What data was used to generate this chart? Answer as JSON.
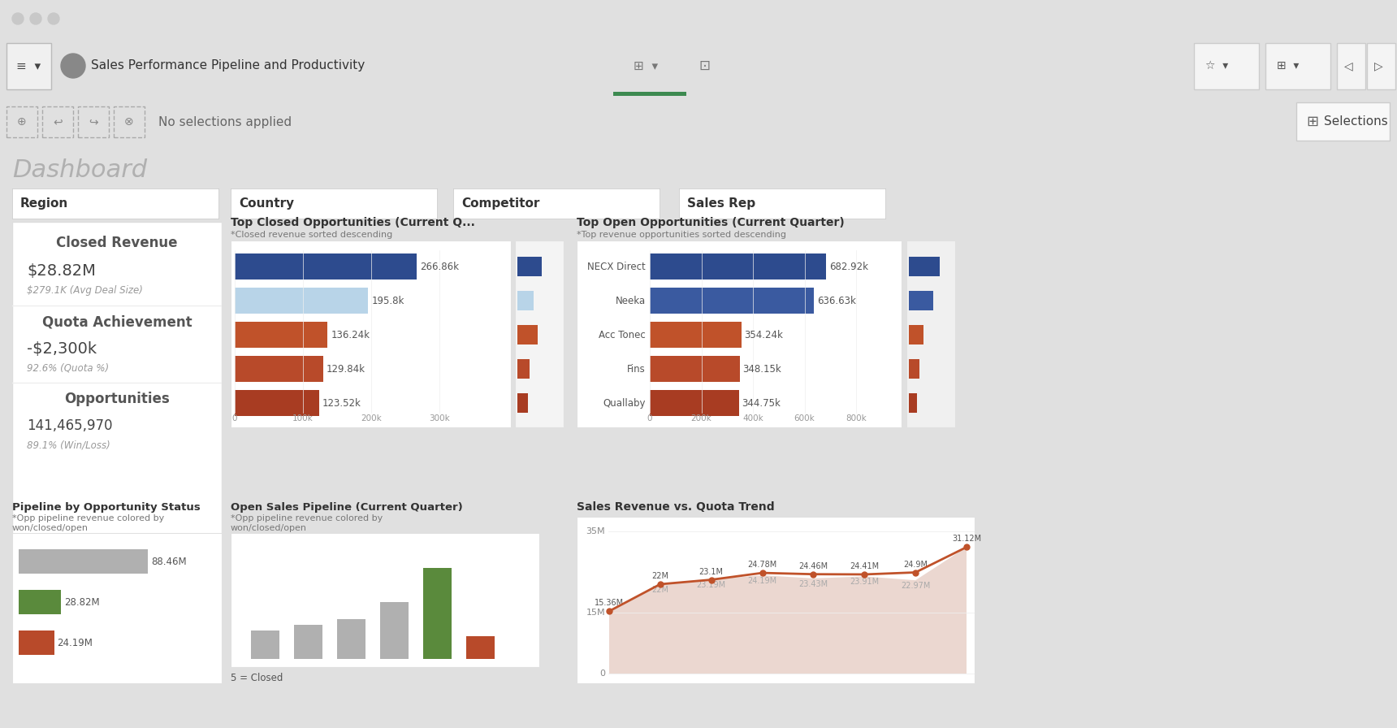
{
  "header_color": "#3d6b52",
  "title": "Sales Performance Pipeline and Productivity",
  "dashboard_title": "Dashboard",
  "filter_labels": [
    "Region",
    "Country",
    "Competitor",
    "Sales Rep"
  ],
  "closed_revenue_title": "Closed Revenue",
  "closed_revenue_value": "$28.82M",
  "closed_revenue_sub": "$279.1K (Avg Deal Size)",
  "quota_title": "Quota Achievement",
  "quota_value": "-$2,300k",
  "quota_sub": "92.6% (Quota %)",
  "opp_title": "Opportunities",
  "opp_value": "141,465,970",
  "opp_sub": "89.1% (Win/Loss)",
  "top_closed_title": "Top Closed Opportunities (Current Q...",
  "top_closed_sub": "*Closed revenue sorted descending",
  "top_closed_values": [
    266.86,
    195.8,
    136.24,
    129.84,
    123.52
  ],
  "top_closed_colors": [
    "#2d4b8e",
    "#b8d4e8",
    "#c0522a",
    "#b84a2a",
    "#a83c22"
  ],
  "top_closed_labels": [
    "266.86k",
    "195.8k",
    "136.24k",
    "129.84k",
    "123.52k"
  ],
  "top_closed_mini_vals": [
    12,
    8,
    10,
    6,
    5
  ],
  "top_closed_mini_colors": [
    "#2d4b8e",
    "#b8d4e8",
    "#c0522a",
    "#b84a2a",
    "#a83c22"
  ],
  "top_open_title": "Top Open Opportunities (Current Quarter)",
  "top_open_sub": "*Top revenue opportunities sorted descending",
  "top_open_cats": [
    "NECX Direct",
    "Neeka",
    "Acc Tonec",
    "Fins",
    "Quallaby"
  ],
  "top_open_values": [
    682.92,
    636.63,
    354.24,
    348.15,
    344.75
  ],
  "top_open_colors": [
    "#2d4b8e",
    "#3a5aa0",
    "#c0522a",
    "#b84a2a",
    "#a83c22"
  ],
  "top_open_labels": [
    "682.92k",
    "636.63k",
    "354.24k",
    "348.15k",
    "344.75k"
  ],
  "top_open_mini_vals": [
    15,
    12,
    7,
    5,
    4
  ],
  "top_open_mini_colors": [
    "#2d4b8e",
    "#3a5aa0",
    "#c0522a",
    "#b84a2a",
    "#a83c22"
  ],
  "pipeline_title": "Pipeline by Opportunity Status",
  "pipeline_sub1": "*Opp pipeline revenue colored by",
  "pipeline_sub2": "won/closed/open",
  "pipeline_vals": [
    88.46,
    28.82,
    24.19
  ],
  "pipeline_colors": [
    "#b0b0b0",
    "#5a8a3c",
    "#b84a2a"
  ],
  "pipeline_labels": [
    "88.46M",
    "28.82M",
    "24.19M"
  ],
  "open_pipe_title": "Open Sales Pipeline (Current Quarter)",
  "open_pipe_sub1": "*Opp pipeline revenue colored by",
  "open_pipe_sub2": "won/closed/open",
  "open_pipe_note": "5 = Closed",
  "open_pipe_vals": [
    2.5,
    3.0,
    3.5,
    5.0,
    8.0,
    2.0
  ],
  "open_pipe_colors": [
    "#b0b0b0",
    "#b0b0b0",
    "#b0b0b0",
    "#b0b0b0",
    "#5a8a3c",
    "#b84a2a"
  ],
  "trend_title": "Sales Revenue vs. Quota Trend",
  "trend_line_nums": [
    15.36,
    22.0,
    23.1,
    24.78,
    24.46,
    24.41,
    24.9,
    31.12
  ],
  "trend_area_nums": [
    15.36,
    22.0,
    23.19,
    24.19,
    23.43,
    23.91,
    22.97,
    31.12
  ],
  "trend_line_labels": [
    "15.36M",
    "22M",
    "23.1M",
    "24.78M",
    "24.46M",
    "24.41M",
    "24.9M",
    "31.12M"
  ],
  "trend_area_labels": [
    "",
    "22M",
    "23.19M",
    "24.19M",
    "23.43M",
    "23.91M",
    "22.97M",
    ""
  ],
  "trend_line_color": "#c0522a",
  "trend_area_color": "#d4a898",
  "trend_ylim": [
    0,
    35
  ],
  "trend_ytick_vals": [
    0,
    15,
    35
  ],
  "trend_ytick_labels": [
    "0",
    "15M",
    "35M"
  ]
}
